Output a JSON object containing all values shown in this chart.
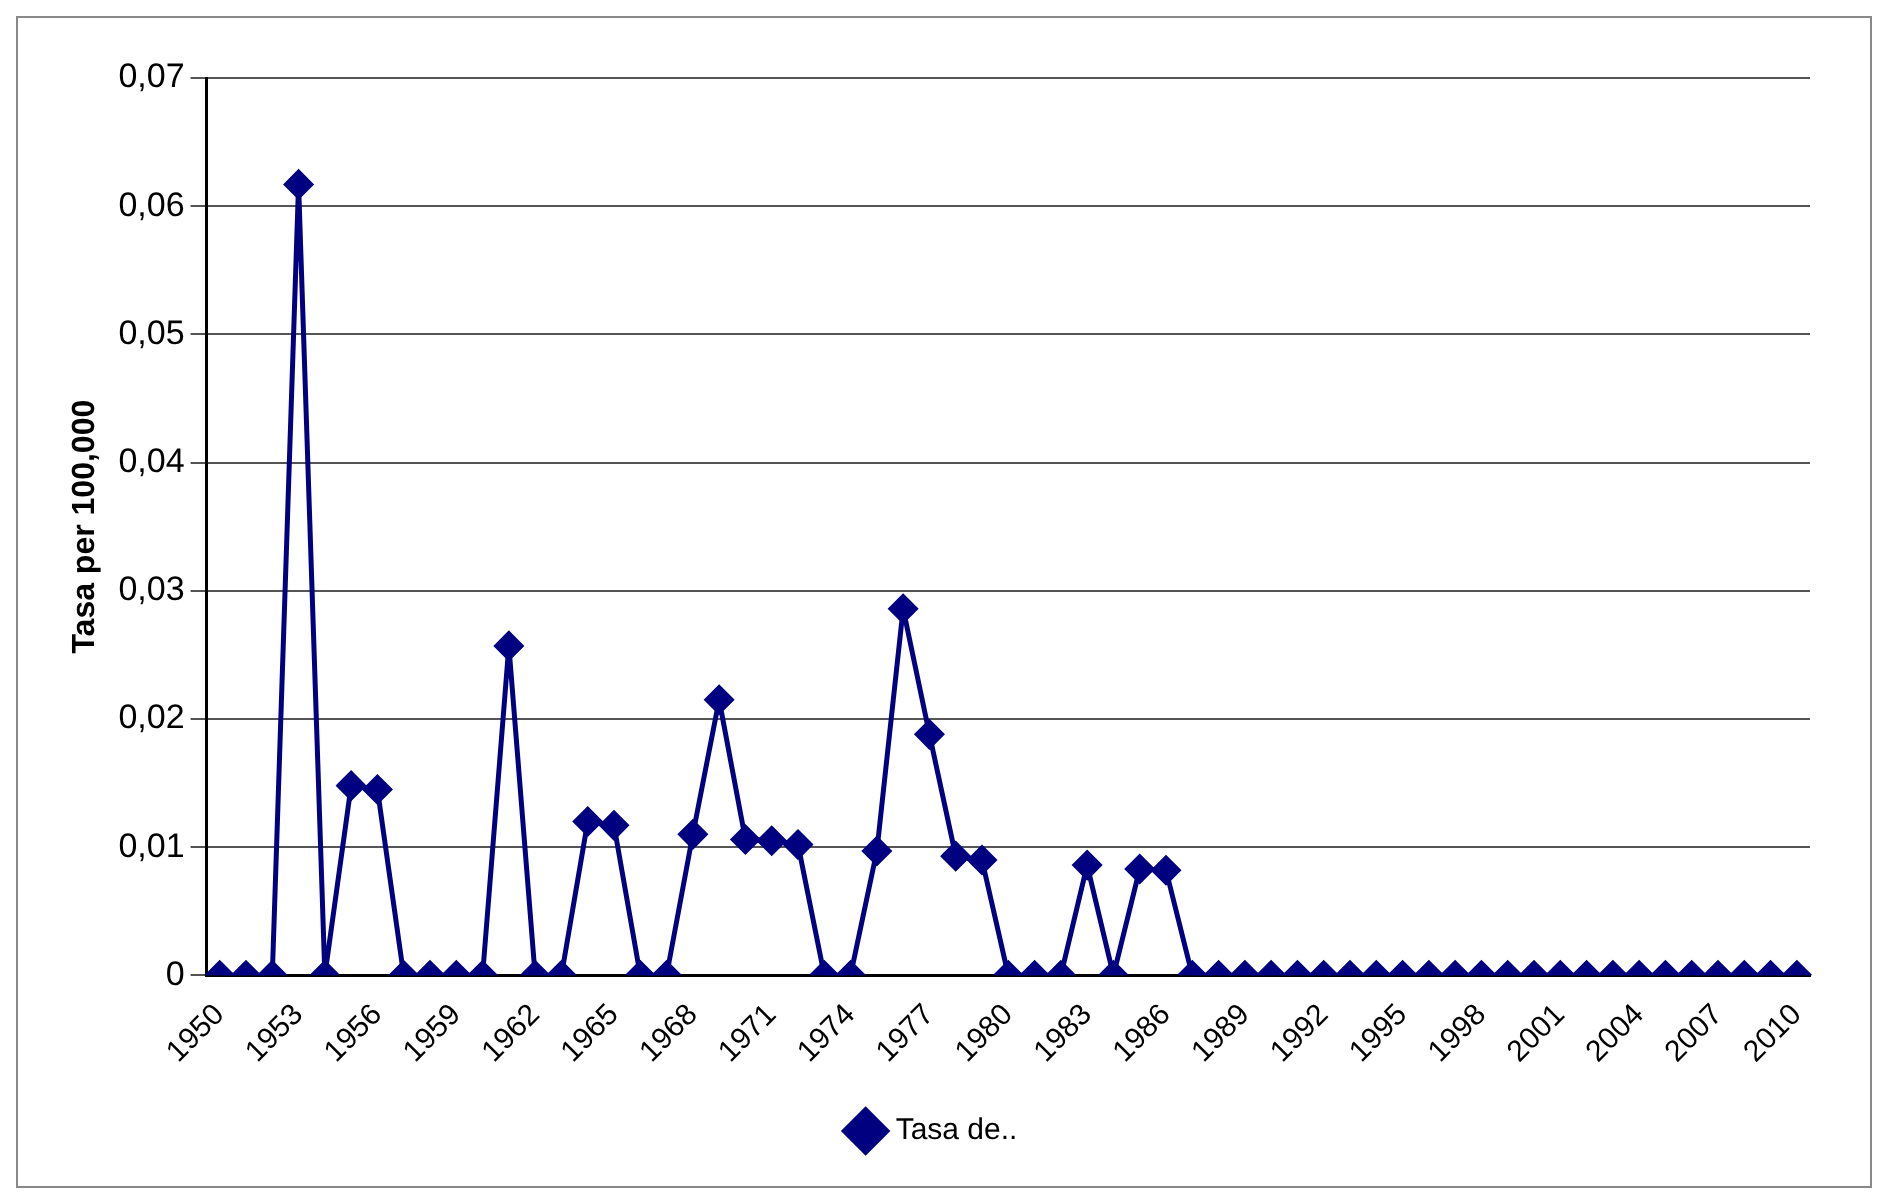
{
  "chart_data": {
    "type": "line",
    "ylabel": "Tasa per 100,000",
    "categories": [
      "1950",
      null,
      null,
      "1953",
      null,
      null,
      "1956",
      null,
      null,
      "1959",
      null,
      null,
      "1962",
      null,
      null,
      "1965",
      null,
      null,
      "1968",
      null,
      null,
      "1971",
      null,
      null,
      "1974",
      null,
      null,
      "1977",
      null,
      null,
      "1980",
      null,
      null,
      "1983",
      null,
      null,
      "1986",
      null,
      null,
      "1989",
      null,
      null,
      "1992",
      null,
      null,
      "1995",
      null,
      null,
      "1998",
      null,
      null,
      "2001",
      null,
      null,
      "2004",
      null,
      null,
      "2007",
      null,
      null,
      "2010"
    ],
    "series": [
      {
        "name": "Tasa de..",
        "color": "#000080",
        "values": [
          0,
          0,
          0,
          0.0617,
          0,
          0.0148,
          0.0145,
          0,
          0,
          0,
          0,
          0.0257,
          0,
          0,
          0.012,
          0.0117,
          0,
          0,
          0.011,
          0.0215,
          0.0106,
          0.0105,
          0.0102,
          0,
          0,
          0.0097,
          0.0286,
          0.0188,
          0.0093,
          0.009,
          0,
          0,
          0,
          0.0086,
          0,
          0.0083,
          0.0082,
          0,
          0,
          0,
          0,
          0,
          0,
          0,
          0,
          0,
          0,
          0,
          0,
          0,
          0,
          0,
          0,
          0,
          0,
          0,
          0,
          0,
          0,
          0,
          0
        ]
      }
    ],
    "ylim": [
      0,
      0.07
    ],
    "yticks": [
      {
        "value": 0,
        "label": "0"
      },
      {
        "value": 0.01,
        "label": "0,01"
      },
      {
        "value": 0.02,
        "label": "0,02"
      },
      {
        "value": 0.03,
        "label": "0,03"
      },
      {
        "value": 0.04,
        "label": "0,04"
      },
      {
        "value": 0.05,
        "label": "0,05"
      },
      {
        "value": 0.06,
        "label": "0,06"
      },
      {
        "value": 0.07,
        "label": "0,07"
      }
    ],
    "grid": "y",
    "legend": "bottom",
    "marker": "diamond",
    "line_style": "solid"
  }
}
